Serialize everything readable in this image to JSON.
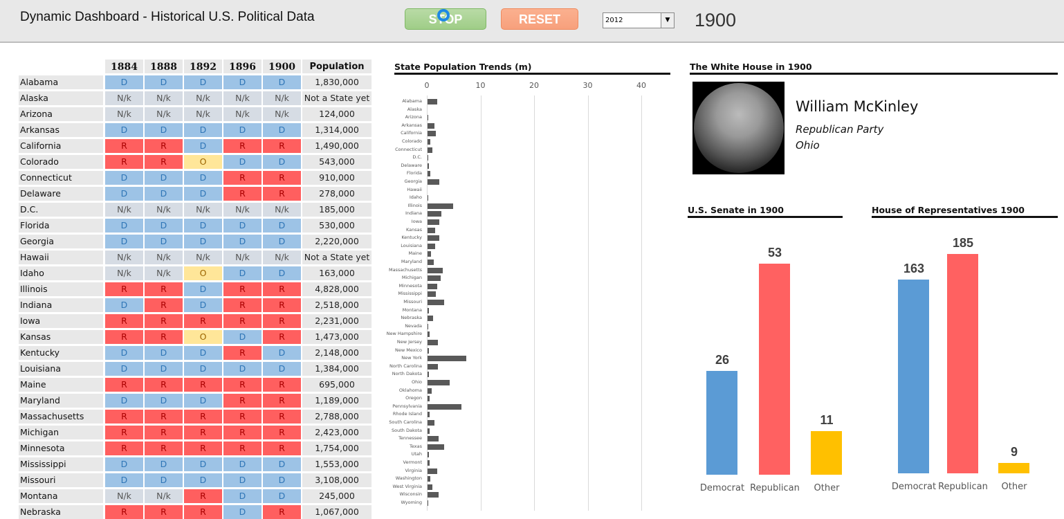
{
  "header": {
    "title": "Dynamic Dashboard - Historical U.S. Political Data",
    "stop_label": "STOP",
    "reset_label": "RESET",
    "year_select": "2012",
    "current_year": "1900"
  },
  "colors": {
    "D": "#9dc3e6",
    "R": "#ff5f5f",
    "O": "#ffe699",
    "N/k": "#d6dce4",
    "democrat_bar": "#5b9bd5",
    "republican_bar": "#ff6161",
    "other_bar": "#ffc000"
  },
  "table": {
    "columns": [
      "1884",
      "1888",
      "1892",
      "1896",
      "1900",
      "Population"
    ],
    "rows": [
      [
        "Alabama",
        "D",
        "D",
        "D",
        "D",
        "D",
        "1,830,000"
      ],
      [
        "Alaska",
        "N/k",
        "N/k",
        "N/k",
        "N/k",
        "N/k",
        "Not a State yet"
      ],
      [
        "Arizona",
        "N/k",
        "N/k",
        "N/k",
        "N/k",
        "N/k",
        "124,000"
      ],
      [
        "Arkansas",
        "D",
        "D",
        "D",
        "D",
        "D",
        "1,314,000"
      ],
      [
        "California",
        "R",
        "R",
        "D",
        "R",
        "R",
        "1,490,000"
      ],
      [
        "Colorado",
        "R",
        "R",
        "O",
        "D",
        "D",
        "543,000"
      ],
      [
        "Connecticut",
        "D",
        "D",
        "D",
        "R",
        "R",
        "910,000"
      ],
      [
        "Delaware",
        "D",
        "D",
        "D",
        "R",
        "R",
        "278,000"
      ],
      [
        "D.C.",
        "N/k",
        "N/k",
        "N/k",
        "N/k",
        "N/k",
        "185,000"
      ],
      [
        "Florida",
        "D",
        "D",
        "D",
        "D",
        "D",
        "530,000"
      ],
      [
        "Georgia",
        "D",
        "D",
        "D",
        "D",
        "D",
        "2,220,000"
      ],
      [
        "Hawaii",
        "N/k",
        "N/k",
        "N/k",
        "N/k",
        "N/k",
        "Not a State yet"
      ],
      [
        "Idaho",
        "N/k",
        "N/k",
        "O",
        "D",
        "D",
        "163,000"
      ],
      [
        "Illinois",
        "R",
        "R",
        "D",
        "R",
        "R",
        "4,828,000"
      ],
      [
        "Indiana",
        "D",
        "R",
        "D",
        "R",
        "R",
        "2,518,000"
      ],
      [
        "Iowa",
        "R",
        "R",
        "R",
        "R",
        "R",
        "2,231,000"
      ],
      [
        "Kansas",
        "R",
        "R",
        "O",
        "D",
        "R",
        "1,473,000"
      ],
      [
        "Kentucky",
        "D",
        "D",
        "D",
        "R",
        "D",
        "2,148,000"
      ],
      [
        "Louisiana",
        "D",
        "D",
        "D",
        "D",
        "D",
        "1,384,000"
      ],
      [
        "Maine",
        "R",
        "R",
        "R",
        "R",
        "R",
        "695,000"
      ],
      [
        "Maryland",
        "D",
        "D",
        "D",
        "R",
        "R",
        "1,189,000"
      ],
      [
        "Massachusetts",
        "R",
        "R",
        "R",
        "R",
        "R",
        "2,788,000"
      ],
      [
        "Michigan",
        "R",
        "R",
        "R",
        "R",
        "R",
        "2,423,000"
      ],
      [
        "Minnesota",
        "R",
        "R",
        "R",
        "R",
        "R",
        "1,754,000"
      ],
      [
        "Mississippi",
        "D",
        "D",
        "D",
        "D",
        "D",
        "1,553,000"
      ],
      [
        "Missouri",
        "D",
        "D",
        "D",
        "D",
        "D",
        "3,108,000"
      ],
      [
        "Montana",
        "N/k",
        "N/k",
        "R",
        "D",
        "D",
        "245,000"
      ],
      [
        "Nebraska",
        "R",
        "R",
        "R",
        "D",
        "R",
        "1,067,000"
      ]
    ]
  },
  "chart_data": [
    {
      "type": "bar",
      "orientation": "horizontal",
      "title": "State Population Trends (m)",
      "xlim": [
        0,
        40
      ],
      "xticks": [
        0,
        10,
        20,
        30,
        40
      ],
      "grid": true,
      "categories": [
        "Alabama",
        "Alaska",
        "Arizona",
        "Arkansas",
        "California",
        "Colorado",
        "Connecticut",
        "D.C.",
        "Delaware",
        "Florida",
        "Georgia",
        "Hawaii",
        "Idaho",
        "Illinois",
        "Indiana",
        "Iowa",
        "Kansas",
        "Kentucky",
        "Louisiana",
        "Maine",
        "Maryland",
        "Massachusetts",
        "Michigan",
        "Minnesota",
        "Mississippi",
        "Missouri",
        "Montana",
        "Nebraska",
        "Nevada",
        "New Hampshire",
        "New Jersey",
        "New Mexico",
        "New York",
        "North Carolina",
        "North Dakota",
        "Ohio",
        "Oklahoma",
        "Oregon",
        "Pennsylvania",
        "Rhode Island",
        "South Carolina",
        "South Dakota",
        "Tennessee",
        "Texas",
        "Utah",
        "Vermont",
        "Virginia",
        "Washington",
        "West Virginia",
        "Wisconsin",
        "Wyoming"
      ],
      "values": [
        1.83,
        0,
        0.12,
        1.31,
        1.49,
        0.54,
        0.91,
        0.19,
        0.28,
        0.53,
        2.22,
        0,
        0.16,
        4.83,
        2.52,
        2.23,
        1.47,
        2.15,
        1.38,
        0.7,
        1.19,
        2.79,
        2.42,
        1.75,
        1.55,
        3.11,
        0.25,
        1.07,
        0.04,
        0.41,
        1.88,
        0.2,
        7.27,
        1.89,
        0.32,
        4.16,
        0.79,
        0.41,
        6.3,
        0.43,
        1.34,
        0.4,
        2.02,
        3.05,
        0.28,
        0.34,
        1.85,
        0.52,
        0.96,
        2.07,
        0.09
      ]
    },
    {
      "type": "bar",
      "title": "U.S. Senate in 1900",
      "categories": [
        "Democrat",
        "Republican",
        "Other"
      ],
      "values": [
        26,
        53,
        11
      ]
    },
    {
      "type": "bar",
      "title": "House of Representatives 1900",
      "categories": [
        "Democrat",
        "Republican",
        "Other"
      ],
      "values": [
        163,
        185,
        9
      ]
    }
  ],
  "white_house": {
    "title": "The White House in 1900",
    "name": "William McKinley",
    "party": "Republican Party",
    "state": "Ohio"
  }
}
